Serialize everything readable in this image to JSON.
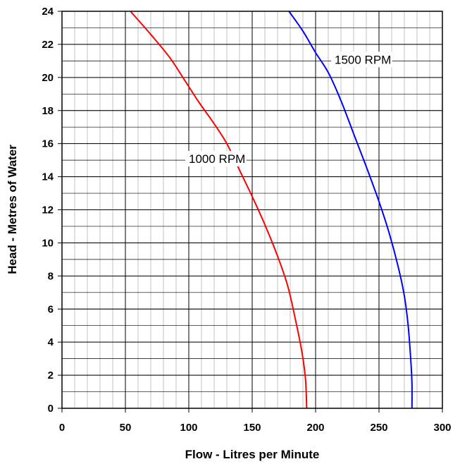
{
  "chart_data": {
    "type": "line",
    "title": "",
    "xlabel": "Flow - Litres per Minute",
    "ylabel": "Head - Metres of Water",
    "xlim": [
      0,
      300
    ],
    "ylim": [
      0,
      24
    ],
    "x_major_ticks": [
      "0",
      "50",
      "100",
      "150",
      "200",
      "250",
      "300"
    ],
    "y_major_ticks": [
      "0",
      "2",
      "4",
      "6",
      "8",
      "10",
      "12",
      "14",
      "16",
      "18",
      "20",
      "22",
      "24"
    ],
    "x_minor_step": 10,
    "y_minor_step": 1,
    "grid": true,
    "series": [
      {
        "name": "1000 RPM",
        "color": "#ff0000",
        "points": [
          [
            54,
            24
          ],
          [
            70,
            22.6
          ],
          [
            85,
            21.2
          ],
          [
            97,
            19.8
          ],
          [
            108,
            18.5
          ],
          [
            120,
            17.2
          ],
          [
            130,
            16.0
          ],
          [
            140,
            14.4
          ],
          [
            150,
            12.8
          ],
          [
            160,
            11.1
          ],
          [
            170,
            9.2
          ],
          [
            178,
            7.4
          ],
          [
            184,
            5.4
          ],
          [
            189,
            3.5
          ],
          [
            192,
            1.8
          ],
          [
            193,
            0
          ]
        ]
      },
      {
        "name": "1500 RPM",
        "color": "#0000ff",
        "points": [
          [
            179,
            24
          ],
          [
            190,
            22.8
          ],
          [
            200,
            21.5
          ],
          [
            210,
            20.3
          ],
          [
            220,
            18.6
          ],
          [
            230,
            16.6
          ],
          [
            240,
            14.6
          ],
          [
            250,
            12.5
          ],
          [
            258,
            10.6
          ],
          [
            265,
            8.6
          ],
          [
            270,
            6.8
          ],
          [
            273,
            5.0
          ],
          [
            275,
            3.0
          ],
          [
            276,
            1.5
          ],
          [
            276,
            0
          ]
        ]
      }
    ]
  }
}
